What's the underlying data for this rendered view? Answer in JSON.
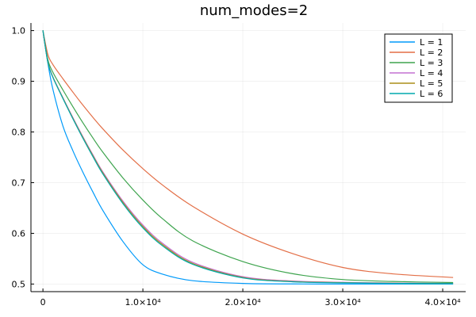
{
  "chart_data": {
    "type": "line",
    "title": "num_modes=2",
    "xlabel": "",
    "ylabel": "",
    "xlim": [
      -1200,
      42300
    ],
    "ylim": [
      0.485,
      1.015
    ],
    "grid": true,
    "legend_position": "top-right",
    "x_ticks": [
      {
        "value": 0,
        "label": "0"
      },
      {
        "value": 10000,
        "label": "1.0×10⁴"
      },
      {
        "value": 20000,
        "label": "2.0×10⁴"
      },
      {
        "value": 30000,
        "label": "3.0×10⁴"
      },
      {
        "value": 40000,
        "label": "4.0×10⁴"
      }
    ],
    "y_ticks": [
      {
        "value": 0.5,
        "label": "0.5"
      },
      {
        "value": 0.6,
        "label": "0.6"
      },
      {
        "value": 0.7,
        "label": "0.7"
      },
      {
        "value": 0.8,
        "label": "0.8"
      },
      {
        "value": 0.9,
        "label": "0.9"
      },
      {
        "value": 1.0,
        "label": "1.0"
      }
    ],
    "x": [
      0,
      500,
      1000,
      2000,
      3000,
      4000,
      5000,
      6000,
      8000,
      10000,
      12000,
      15000,
      20000,
      25000,
      30000,
      35000,
      41000
    ],
    "series": [
      {
        "name": "L = 1",
        "color": "#009AFA",
        "values": [
          1.0,
          0.9351,
          0.8838,
          0.8117,
          0.7628,
          0.7205,
          0.6815,
          0.645,
          0.584,
          0.5381,
          0.5193,
          0.5066,
          0.5012,
          0.5002,
          0.5001,
          0.5,
          0.5
        ]
      },
      {
        "name": "L = 2",
        "color": "#E36F47",
        "values": [
          1.0,
          0.9525,
          0.9329,
          0.905,
          0.8785,
          0.8529,
          0.8288,
          0.806,
          0.7645,
          0.7276,
          0.6948,
          0.6531,
          0.5985,
          0.56,
          0.5327,
          0.5201,
          0.513
        ]
      },
      {
        "name": "L = 3",
        "color": "#3EA44E",
        "values": [
          1.0,
          0.9424,
          0.9177,
          0.8829,
          0.8498,
          0.8181,
          0.7882,
          0.7599,
          0.7094,
          0.6657,
          0.6283,
          0.5851,
          0.5444,
          0.5204,
          0.5089,
          0.5051,
          0.503
        ]
      },
      {
        "name": "L = 4",
        "color": "#C371D2",
        "values": [
          1.0,
          0.9372,
          0.9087,
          0.8677,
          0.8283,
          0.7906,
          0.755,
          0.7212,
          0.6638,
          0.6164,
          0.58,
          0.5427,
          0.5145,
          0.506,
          0.5034,
          0.502,
          0.5013
        ]
      },
      {
        "name": "L = 5",
        "color": "#AC8D18",
        "values": [
          1.0,
          0.9368,
          0.9081,
          0.8668,
          0.827,
          0.789,
          0.7531,
          0.719,
          0.6612,
          0.6135,
          0.5772,
          0.5405,
          0.5131,
          0.505,
          0.5028,
          0.5016,
          0.501
        ]
      },
      {
        "name": "L = 6",
        "color": "#00A9AD",
        "values": [
          1.0,
          0.9364,
          0.9075,
          0.8659,
          0.8258,
          0.7875,
          0.7513,
          0.717,
          0.6588,
          0.6109,
          0.5748,
          0.5388,
          0.5121,
          0.5044,
          0.5024,
          0.5013,
          0.5008
        ]
      }
    ]
  }
}
